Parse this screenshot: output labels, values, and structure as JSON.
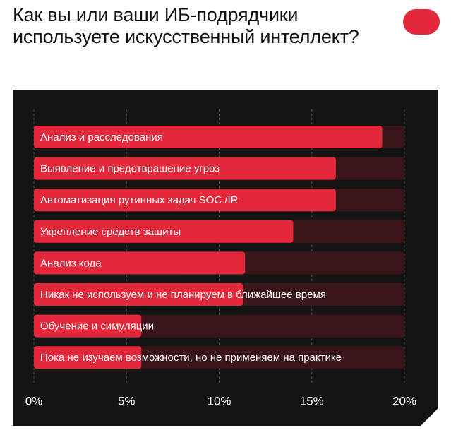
{
  "title": "Как вы или ваши ИБ-подрядчики используете искусственный интеллект?",
  "colors": {
    "background": "#ffffff",
    "panel": "#141414",
    "bar": "#e2283a",
    "track": "#3a161b",
    "brand": "#e2283a"
  },
  "chart_data": {
    "type": "bar",
    "orientation": "horizontal",
    "categories": [
      "Анализ и расследования",
      "Выявление и предотвращение угроз",
      "Автоматизация рутинных задач SOC /IR",
      "Укрепление средств защиты",
      "Анализ кода",
      "Никак не используем и не планируем в ближайшее время",
      "Обучение и симуляции",
      "Пока не изучаем возможности, но не применяем на практике"
    ],
    "values": [
      18.8,
      16.3,
      16.3,
      14.0,
      11.4,
      11.3,
      5.8,
      5.8
    ],
    "xlim": [
      0,
      20
    ],
    "ticks": [
      0,
      5,
      10,
      15,
      20
    ],
    "tick_labels": [
      "0%",
      "5%",
      "10%",
      "15%",
      "20%"
    ],
    "grid": "vertical dashed",
    "xlabel": "",
    "ylabel": ""
  }
}
